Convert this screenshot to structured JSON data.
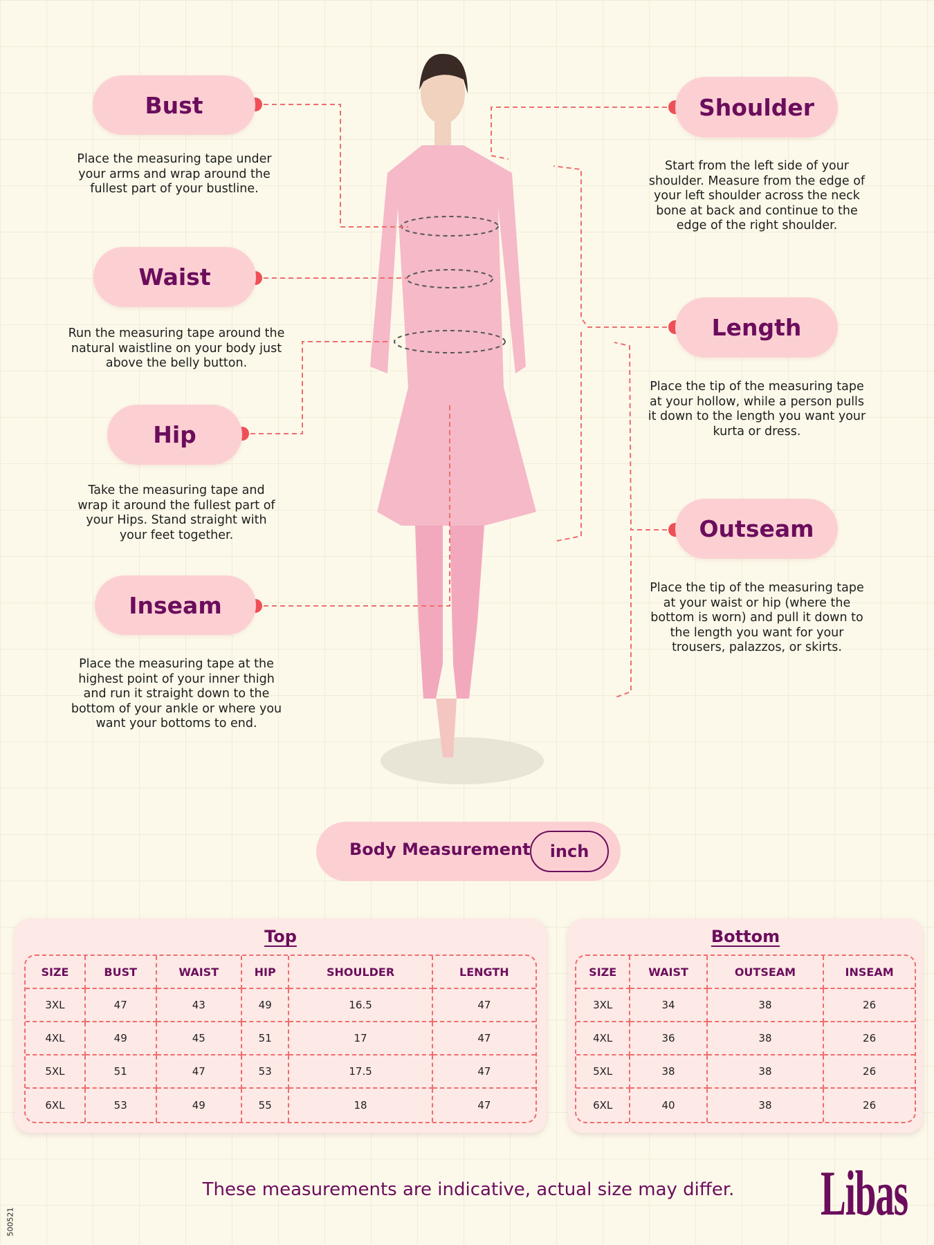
{
  "measurements": {
    "bust": {
      "label": "Bust",
      "desc": "Place the measuring tape under your arms and wrap around the fullest part of your bustline."
    },
    "waist": {
      "label": "Waist",
      "desc": "Run the measuring tape around the natural waistline on your body just above the belly button."
    },
    "hip": {
      "label": "Hip",
      "desc": "Take the measuring tape and wrap it around the fullest part of your Hips. Stand straight with your feet together."
    },
    "inseam": {
      "label": "Inseam",
      "desc": "Place the measuring tape at the highest point of your inner thigh and run it straight down to the bottom of your ankle or where you want your bottoms to end."
    },
    "shoulder": {
      "label": "Shoulder",
      "desc": "Start from the left side of your shoulder. Measure from the edge of your left shoulder across the neck bone at back and continue to the edge of the right shoulder."
    },
    "length": {
      "label": "Length",
      "desc": "Place the tip of the measuring tape at your hollow, while a person pulls it down to the length you want your kurta or dress."
    },
    "outseam": {
      "label": "Outseam",
      "desc": "Place the tip of the measuring tape at your waist or hip (where the bottom is worn) and pull it down to the length you want for your trousers, palazzos, or skirts."
    }
  },
  "unit_toggle": {
    "label": "Body Measurement",
    "unit": "inch"
  },
  "top_table": {
    "title": "Top",
    "headers": [
      "SIZE",
      "BUST",
      "WAIST",
      "HIP",
      "SHOULDER",
      "LENGTH"
    ],
    "rows": [
      [
        "3XL",
        "47",
        "43",
        "49",
        "16.5",
        "47"
      ],
      [
        "4XL",
        "49",
        "45",
        "51",
        "17",
        "47"
      ],
      [
        "5XL",
        "51",
        "47",
        "53",
        "17.5",
        "47"
      ],
      [
        "6XL",
        "53",
        "49",
        "55",
        "18",
        "47"
      ]
    ]
  },
  "bottom_table": {
    "title": "Bottom",
    "headers": [
      "SIZE",
      "WAIST",
      "OUTSEAM",
      "INSEAM"
    ],
    "rows": [
      [
        "3XL",
        "34",
        "38",
        "26"
      ],
      [
        "4XL",
        "36",
        "38",
        "26"
      ],
      [
        "5XL",
        "38",
        "38",
        "26"
      ],
      [
        "6XL",
        "40",
        "38",
        "26"
      ]
    ]
  },
  "footer": {
    "note": "These measurements are indicative, actual size may differ.",
    "logo": "Libas",
    "code": "500521"
  },
  "colors": {
    "accent": "#6b0d5c",
    "pill": "#fcd0d3",
    "dash": "#ee6d6d"
  }
}
